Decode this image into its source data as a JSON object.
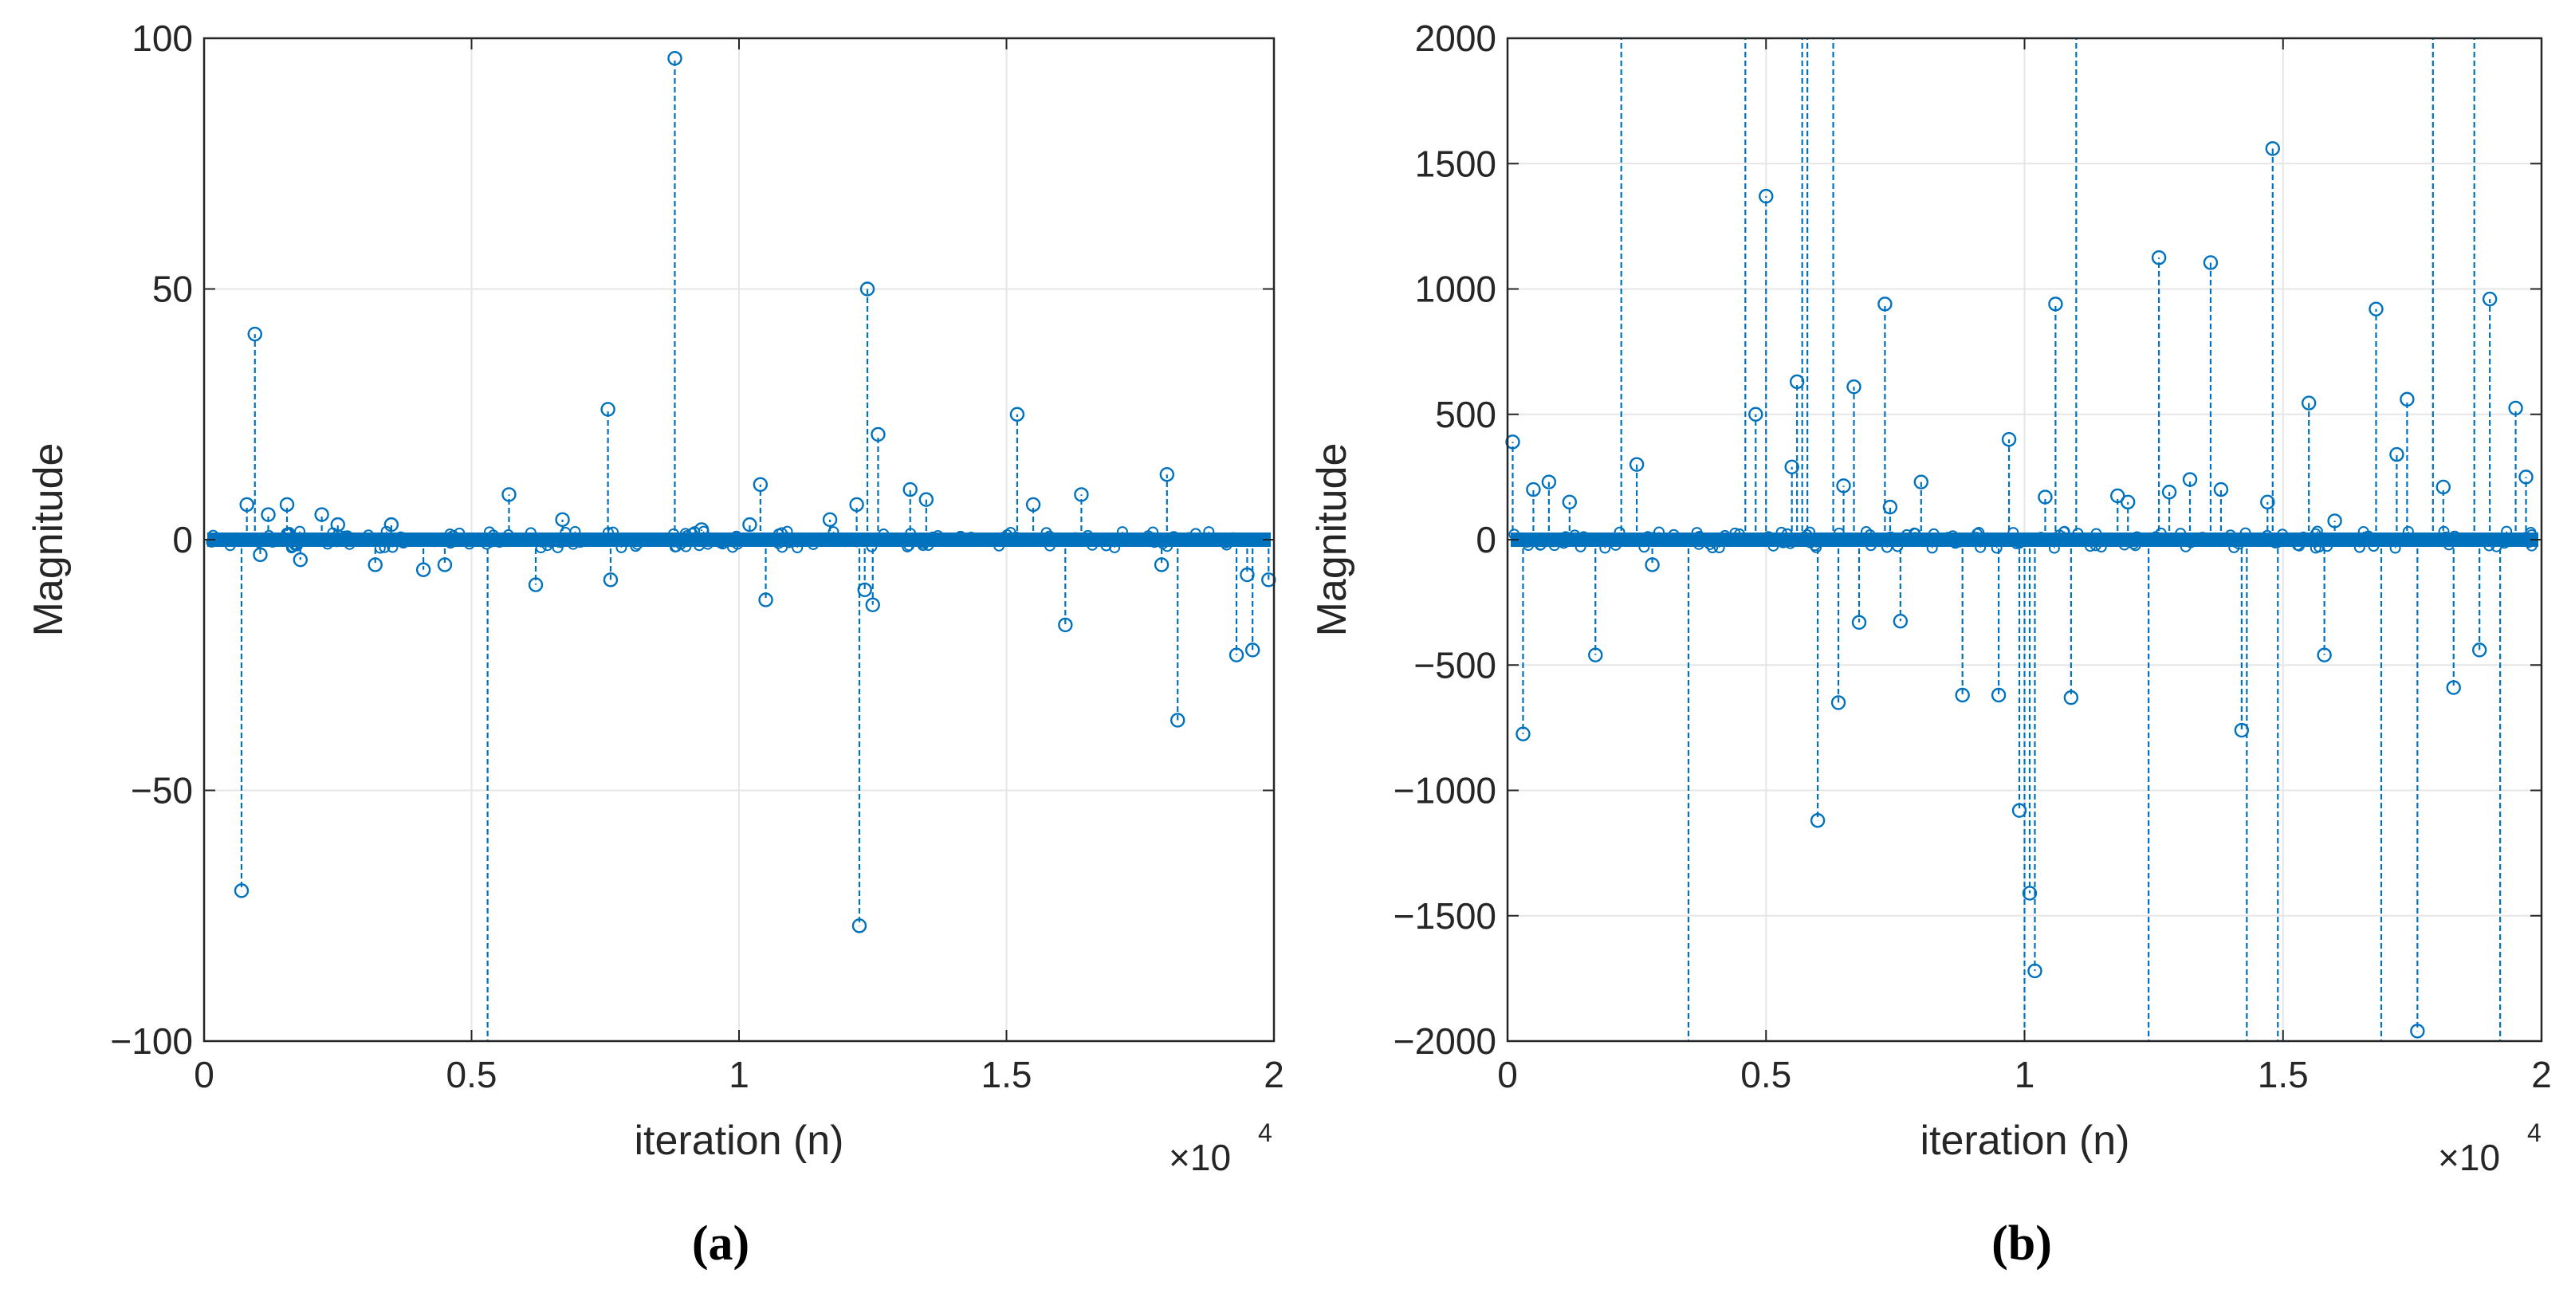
{
  "colors": {
    "series": "#0072BD",
    "grid": "#e6e6e6",
    "axis": "#262626"
  },
  "chart_data": [
    {
      "type": "stem",
      "panel_label": "(a)",
      "title": "",
      "xlabel": "iteration (n)",
      "ylabel": "Magnitude",
      "x_multiplier_label": "×10",
      "x_multiplier_exp": "4",
      "xlim": [
        0,
        2
      ],
      "ylim": [
        -100,
        100
      ],
      "xticks": [
        0,
        0.5,
        1,
        1.5,
        2
      ],
      "xtick_labels": [
        "0",
        "0.5",
        "1",
        "1.5",
        "2"
      ],
      "yticks": [
        -100,
        -50,
        0,
        50,
        100
      ],
      "ytick_labels": [
        "−100",
        "−50",
        "0",
        "50",
        "100"
      ],
      "grid": true,
      "x_units": "×10^4 iterations",
      "series": [
        {
          "name": "magnitude",
          "x": [
            0.07,
            0.08,
            0.095,
            0.105,
            0.12,
            0.155,
            0.18,
            0.22,
            0.25,
            0.32,
            0.35,
            0.41,
            0.45,
            0.53,
            0.57,
            0.62,
            0.67,
            0.755,
            0.76,
            0.88,
            0.93,
            1.02,
            1.04,
            1.05,
            1.17,
            1.22,
            1.225,
            1.235,
            1.24,
            1.25,
            1.26,
            1.32,
            1.35,
            1.52,
            1.55,
            1.61,
            1.64,
            1.79,
            1.8,
            1.82,
            1.93,
            1.95,
            1.96,
            1.99
          ],
          "values": [
            -70,
            7,
            41,
            -3,
            5,
            7,
            -4,
            5,
            3,
            -5,
            3,
            -6,
            -5,
            -100,
            9,
            -9,
            4,
            26,
            -8,
            96,
            2,
            3,
            11,
            -12,
            4,
            7,
            -77,
            -10,
            50,
            -13,
            21,
            10,
            8,
            25,
            7,
            -17,
            9,
            -5,
            13,
            -36,
            -23,
            -7,
            -22,
            -8
          ]
        }
      ]
    },
    {
      "type": "stem",
      "panel_label": "(b)",
      "title": "",
      "xlabel": "iteration (n)",
      "ylabel": "Magnitude",
      "x_multiplier_label": "×10",
      "x_multiplier_exp": "4",
      "xlim": [
        0,
        2
      ],
      "ylim": [
        -2000,
        2000
      ],
      "xticks": [
        0,
        0.5,
        1,
        1.5,
        2
      ],
      "xtick_labels": [
        "0",
        "0.5",
        "1",
        "1.5",
        "2"
      ],
      "yticks": [
        -2000,
        -1500,
        -1000,
        -500,
        0,
        500,
        1000,
        1500,
        2000
      ],
      "ytick_labels": [
        "−2000",
        "−1500",
        "−1000",
        "−500",
        "0",
        "500",
        "1000",
        "1500",
        "2000"
      ],
      "grid": true,
      "x_units": "×10^4 iterations",
      "series": [
        {
          "name": "magnitude",
          "x": [
            0.01,
            0.03,
            0.05,
            0.08,
            0.12,
            0.17,
            0.22,
            0.25,
            0.28,
            0.35,
            0.46,
            0.48,
            0.5,
            0.55,
            0.56,
            0.57,
            0.58,
            0.6,
            0.63,
            0.64,
            0.65,
            0.67,
            0.68,
            0.73,
            0.74,
            0.76,
            0.8,
            0.88,
            0.95,
            0.97,
            0.99,
            1.0,
            1.01,
            1.02,
            1.04,
            1.06,
            1.09,
            1.1,
            1.18,
            1.2,
            1.24,
            1.26,
            1.28,
            1.32,
            1.36,
            1.38,
            1.42,
            1.43,
            1.47,
            1.48,
            1.49,
            1.55,
            1.58,
            1.6,
            1.68,
            1.69,
            1.72,
            1.74,
            1.76,
            1.79,
            1.81,
            1.83,
            1.87,
            1.88,
            1.9,
            1.92,
            1.95,
            1.97
          ],
          "values": [
            390,
            -775,
            200,
            230,
            150,
            -460,
            2000,
            300,
            -100,
            -2000,
            2000,
            500,
            1370,
            290,
            630,
            2000,
            2000,
            -1120,
            2000,
            -650,
            215,
            610,
            -330,
            940,
            130,
            -325,
            230,
            -620,
            -620,
            400,
            -1080,
            -2000,
            -1410,
            -1720,
            170,
            940,
            -630,
            2000,
            175,
            150,
            -2000,
            1125,
            190,
            240,
            1105,
            200,
            -760,
            -2000,
            150,
            1560,
            -2000,
            545,
            -460,
            75,
            920,
            -2000,
            340,
            560,
            -1960,
            2000,
            210,
            -590,
            2000,
            -440,
            960,
            -2000,
            525,
            250
          ]
        }
      ]
    }
  ]
}
